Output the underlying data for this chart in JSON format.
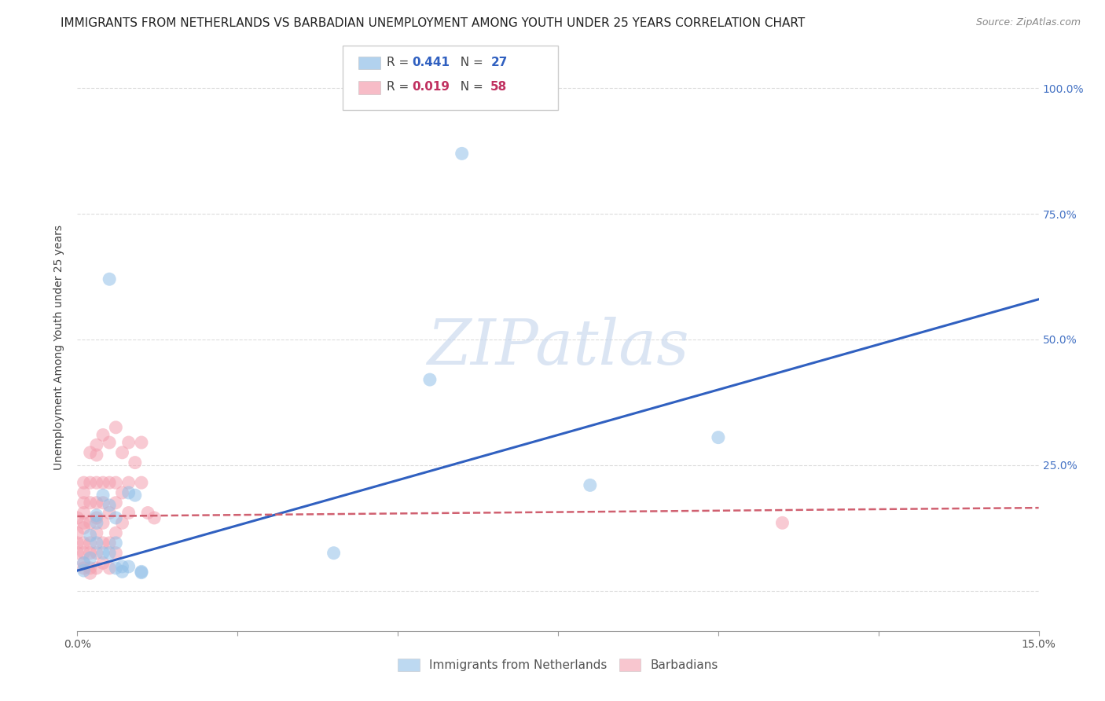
{
  "title": "IMMIGRANTS FROM NETHERLANDS VS BARBADIAN UNEMPLOYMENT AMONG YOUTH UNDER 25 YEARS CORRELATION CHART",
  "source": "Source: ZipAtlas.com",
  "ylabel": "Unemployment Among Youth under 25 years",
  "blue_color": "#92c0e8",
  "pink_color": "#f4a0b0",
  "line_blue": "#3060c0",
  "line_pink": "#d06070",
  "watermark": "ZIPatlas",
  "scatter_blue": [
    [
      0.001,
      0.04
    ],
    [
      0.001,
      0.055
    ],
    [
      0.002,
      0.065
    ],
    [
      0.002,
      0.11
    ],
    [
      0.003,
      0.095
    ],
    [
      0.003,
      0.135
    ],
    [
      0.003,
      0.15
    ],
    [
      0.004,
      0.075
    ],
    [
      0.004,
      0.19
    ],
    [
      0.005,
      0.62
    ],
    [
      0.005,
      0.17
    ],
    [
      0.005,
      0.075
    ],
    [
      0.006,
      0.095
    ],
    [
      0.006,
      0.145
    ],
    [
      0.006,
      0.045
    ],
    [
      0.007,
      0.048
    ],
    [
      0.007,
      0.038
    ],
    [
      0.008,
      0.048
    ],
    [
      0.008,
      0.195
    ],
    [
      0.009,
      0.19
    ],
    [
      0.01,
      0.038
    ],
    [
      0.01,
      0.036
    ],
    [
      0.04,
      0.075
    ],
    [
      0.055,
      0.42
    ],
    [
      0.06,
      0.87
    ],
    [
      0.08,
      0.21
    ],
    [
      0.1,
      0.305
    ]
  ],
  "scatter_pink": [
    [
      0.0,
      0.115
    ],
    [
      0.0,
      0.095
    ],
    [
      0.0,
      0.075
    ],
    [
      0.0,
      0.145
    ],
    [
      0.001,
      0.175
    ],
    [
      0.001,
      0.195
    ],
    [
      0.001,
      0.215
    ],
    [
      0.001,
      0.135
    ],
    [
      0.001,
      0.095
    ],
    [
      0.001,
      0.075
    ],
    [
      0.001,
      0.155
    ],
    [
      0.001,
      0.125
    ],
    [
      0.001,
      0.055
    ],
    [
      0.001,
      0.045
    ],
    [
      0.002,
      0.275
    ],
    [
      0.002,
      0.215
    ],
    [
      0.002,
      0.175
    ],
    [
      0.002,
      0.135
    ],
    [
      0.002,
      0.095
    ],
    [
      0.002,
      0.075
    ],
    [
      0.002,
      0.045
    ],
    [
      0.002,
      0.035
    ],
    [
      0.003,
      0.29
    ],
    [
      0.003,
      0.27
    ],
    [
      0.003,
      0.215
    ],
    [
      0.003,
      0.175
    ],
    [
      0.003,
      0.145
    ],
    [
      0.003,
      0.115
    ],
    [
      0.003,
      0.075
    ],
    [
      0.003,
      0.045
    ],
    [
      0.004,
      0.31
    ],
    [
      0.004,
      0.215
    ],
    [
      0.004,
      0.175
    ],
    [
      0.004,
      0.135
    ],
    [
      0.004,
      0.095
    ],
    [
      0.004,
      0.055
    ],
    [
      0.005,
      0.295
    ],
    [
      0.005,
      0.215
    ],
    [
      0.005,
      0.155
    ],
    [
      0.005,
      0.095
    ],
    [
      0.005,
      0.045
    ],
    [
      0.006,
      0.325
    ],
    [
      0.006,
      0.215
    ],
    [
      0.006,
      0.175
    ],
    [
      0.006,
      0.115
    ],
    [
      0.006,
      0.075
    ],
    [
      0.007,
      0.275
    ],
    [
      0.007,
      0.195
    ],
    [
      0.007,
      0.135
    ],
    [
      0.008,
      0.295
    ],
    [
      0.008,
      0.215
    ],
    [
      0.008,
      0.155
    ],
    [
      0.009,
      0.255
    ],
    [
      0.01,
      0.215
    ],
    [
      0.01,
      0.295
    ],
    [
      0.011,
      0.155
    ],
    [
      0.012,
      0.145
    ],
    [
      0.11,
      0.135
    ]
  ],
  "blue_line_x": [
    0.0,
    0.15
  ],
  "blue_line_y": [
    0.04,
    0.58
  ],
  "pink_line_x": [
    0.0,
    0.15
  ],
  "pink_line_y": [
    0.148,
    0.165
  ],
  "xlim": [
    0.0,
    0.15
  ],
  "ylim": [
    -0.08,
    1.05
  ],
  "y_ticks": [
    0.0,
    0.25,
    0.5,
    0.75,
    1.0
  ],
  "y_tick_labels_right": [
    "",
    "25.0%",
    "50.0%",
    "75.0%",
    "100.0%"
  ],
  "x_tick_positions": [
    0.0,
    0.025,
    0.05,
    0.075,
    0.1,
    0.125,
    0.15
  ],
  "background_color": "#ffffff",
  "grid_color": "#dddddd",
  "title_fontsize": 11,
  "source_fontsize": 9,
  "axis_label_fontsize": 10,
  "tick_fontsize": 10,
  "legend_r1": "0.441",
  "legend_n1": "27",
  "legend_r2": "0.019",
  "legend_n2": "58"
}
